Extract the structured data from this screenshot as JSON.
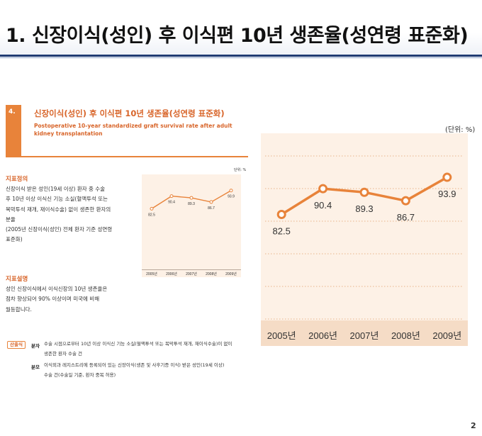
{
  "slide": {
    "title": "1. 신장이식(성인) 후 이식편 10년 생존율(성연령 표준화)",
    "page_number": "2"
  },
  "doc": {
    "number": "4.",
    "heading": "신장이식(성인) 후 이식편 10년 생존율(성연령 표준화)",
    "subtitle": "Postoperative 10-year standardized graft survival rate after adult kidney transplantation",
    "definition_title": "지표정의",
    "definition_lines": [
      "신장이식 받은 성인(19세 이상) 환자 중 수술",
      "후 10년 이상 이식신 기능 소실(혈액투석 또는",
      "복막투석 재개, 재이식수술) 없이 생존한 환자의",
      "분율",
      "(2005년 신장이식(성인) 전체 환자 기준 성연령",
      "표준화)"
    ],
    "explanation_title": "지표설명",
    "explanation_lines": [
      "성인 신장이식에서 이식신장의 10년 생존율은",
      "점차 향상되어 90% 이상이며 미국에 비해",
      "월등합니다."
    ],
    "source_badge": "산출식",
    "numerator_label": "분자",
    "numerator_lines": [
      "수술 시점으로부터 10년 이상 이식신 기능 소실(혈액투석 또는 복막투석 재개, 재이식수술)이 없이",
      "생존한 환자 수술 건"
    ],
    "denominator_label": "분모",
    "denominator_lines": [
      "이식외과 레지스트리에 등록되어 있는 신장이식(생존 및 사후기증 이식) 받은 성인(19세 이상)",
      "수술 건(수술일 기준, 환자 중복 허용)"
    ],
    "small_unit": "단위: %"
  },
  "chart_data": {
    "type": "line",
    "categories": [
      "2005년",
      "2006년",
      "2007년",
      "2008년",
      "2009년"
    ],
    "values": [
      82.5,
      90.4,
      89.3,
      86.7,
      93.9
    ],
    "data_labels": [
      "82.5",
      "90.4",
      "89.3",
      "86.7",
      "93.9"
    ],
    "unit": "(단위: %)",
    "ylim": [
      50,
      100
    ],
    "line_color": "#e8833a",
    "plot_background": "#fdf1e6",
    "grid": "dotted horizontal"
  }
}
